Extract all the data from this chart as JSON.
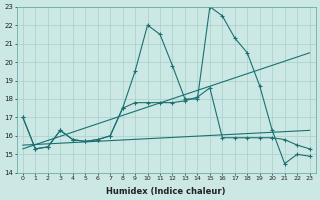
{
  "xlabel": "Humidex (Indice chaleur)",
  "xlim": [
    -0.5,
    23.5
  ],
  "ylim": [
    14,
    23
  ],
  "bg_color": "#cce8e5",
  "grid_color": "#aacfcc",
  "line_color": "#1a7070",
  "xticks": [
    0,
    1,
    2,
    3,
    4,
    5,
    6,
    7,
    8,
    9,
    10,
    11,
    12,
    13,
    14,
    15,
    16,
    17,
    18,
    19,
    20,
    21,
    22,
    23
  ],
  "yticks": [
    14,
    15,
    16,
    17,
    18,
    19,
    20,
    21,
    22,
    23
  ],
  "series": [
    {
      "x": [
        0,
        1,
        2,
        3,
        4,
        5,
        6,
        7,
        8,
        9,
        10,
        11,
        12,
        13,
        14,
        15,
        16,
        17,
        18,
        19,
        20,
        21,
        22,
        23
      ],
      "y": [
        17.0,
        15.3,
        15.4,
        16.3,
        15.8,
        15.7,
        15.8,
        16.0,
        17.5,
        19.5,
        22.0,
        21.5,
        19.8,
        18.0,
        18.0,
        23.0,
        22.5,
        21.3,
        20.5,
        18.7,
        16.3,
        14.5,
        15.0,
        14.9
      ]
    },
    {
      "x": [
        0,
        1,
        2,
        3,
        4,
        5,
        6,
        7,
        8,
        9,
        10,
        11,
        12,
        13,
        14,
        15,
        16,
        17,
        18,
        19,
        20,
        21,
        22,
        23
      ],
      "y": [
        17.0,
        15.3,
        15.4,
        16.3,
        15.8,
        15.7,
        15.8,
        16.0,
        17.5,
        17.8,
        17.8,
        17.8,
        17.8,
        17.9,
        18.1,
        18.6,
        15.9,
        15.9,
        15.9,
        15.9,
        15.9,
        15.8,
        15.5,
        15.3
      ]
    },
    {
      "x": [
        0,
        23
      ],
      "y": [
        15.3,
        20.5
      ]
    },
    {
      "x": [
        0,
        23
      ],
      "y": [
        15.5,
        16.3
      ]
    }
  ]
}
